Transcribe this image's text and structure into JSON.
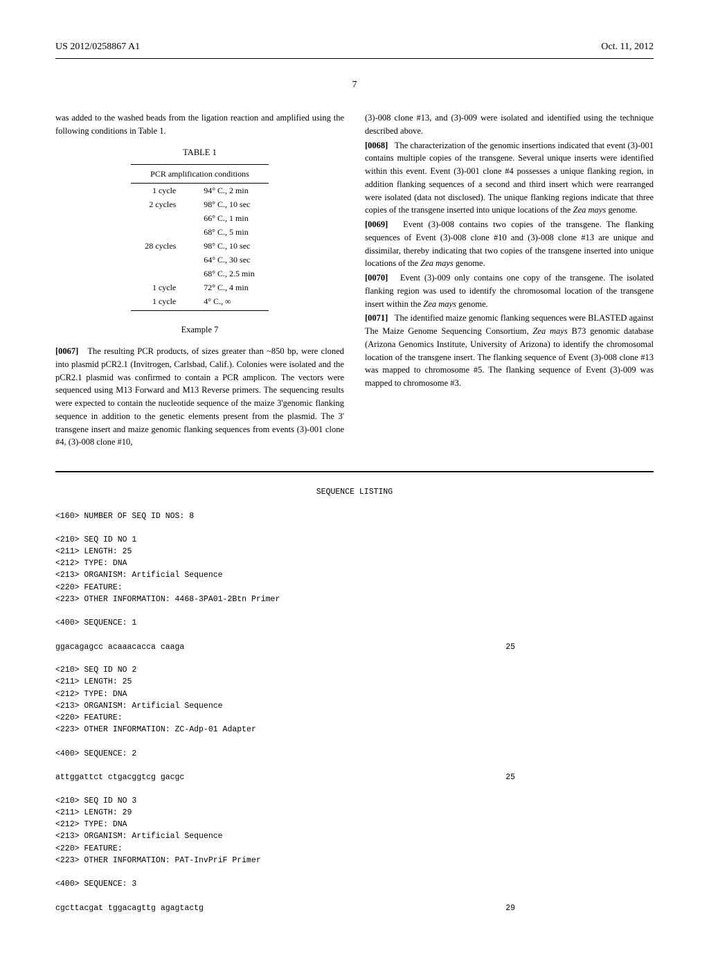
{
  "header": {
    "left": "US 2012/0258867 A1",
    "right": "Oct. 11, 2012"
  },
  "page_number": "7",
  "left_column": {
    "intro_text": "was added to the washed beads from the ligation reaction and amplified using the following conditions in Table 1.",
    "table": {
      "caption": "TABLE 1",
      "subtitle": "PCR amplification conditions",
      "rows": [
        {
          "cycles": "1 cycle",
          "cond": "94° C., 2 min"
        },
        {
          "cycles": "2 cycles",
          "cond": "98° C., 10 sec"
        },
        {
          "cycles": "",
          "cond": "66° C., 1 min"
        },
        {
          "cycles": "",
          "cond": "68° C., 5 min"
        },
        {
          "cycles": "28 cycles",
          "cond": "98° C., 10 sec"
        },
        {
          "cycles": "",
          "cond": "64° C., 30 sec"
        },
        {
          "cycles": "",
          "cond": "68° C., 2.5 min"
        },
        {
          "cycles": "1 cycle",
          "cond": "72° C., 4 min"
        },
        {
          "cycles": "1 cycle",
          "cond": "4° C., ∞"
        }
      ]
    },
    "example_heading": "Example 7",
    "para_0067_num": "[0067]",
    "para_0067": "The resulting PCR products, of sizes greater than ~850 bp, were cloned into plasmid pCR2.1 (Invitrogen, Carlsbad, Calif.). Colonies were isolated and the pCR2.1 plasmid was confirmed to contain a PCR amplicon. The vectors were sequenced using M13 Forward and M13 Reverse primers. The sequencing results were expected to contain the nucleotide sequence of the maize 3'genomic flanking sequence in addition to the genetic elements present from the plasmid. The 3' transgene insert and maize genomic flanking sequences from events (3)-001 clone #4, (3)-008 clone #10,"
  },
  "right_column": {
    "cont_text": "(3)-008 clone #13, and (3)-009 were isolated and identified using the technique described above.",
    "para_0068_num": "[0068]",
    "para_0068_a": "The characterization of the genomic insertions indicated that event (3)-001 contains multiple copies of the transgene. Several unique inserts were identified within this event. Event (3)-001 clone #4 possesses a unique flanking region, in addition flanking sequences of a second and third insert which were rearranged were isolated (data not disclosed). The unique flanking regions indicate that three copies of the transgene inserted into unique locations of the ",
    "para_0068_b": "Zea mays",
    "para_0068_c": " genome.",
    "para_0069_num": "[0069]",
    "para_0069_a": "Event (3)-008 contains two copies of the transgene. The flanking sequences of Event (3)-008 clone #10 and (3)-008 clone #13 are unique and dissimilar, thereby indicating that two copies of the transgene inserted into unique locations of the ",
    "para_0069_b": "Zea mays",
    "para_0069_c": " genome.",
    "para_0070_num": "[0070]",
    "para_0070_a": "Event (3)-009 only contains one copy of the transgene. The isolated flanking region was used to identify the chromosomal location of the transgene insert within the ",
    "para_0070_b": "Zea mays",
    "para_0070_c": " genome.",
    "para_0071_num": "[0071]",
    "para_0071_a": "The identified maize genomic flanking sequences were BLASTED against The Maize Genome Sequencing Consortium, ",
    "para_0071_b": "Zea mays",
    "para_0071_c": " B73 genomic database (Arizona Genomics Institute, University of Arizona) to identify the chromosomal location of the transgene insert. The flanking sequence of Event (3)-008 clone #13 was mapped to chromosome #5. The flanking sequence of Event (3)-009 was mapped to chromosome #3."
  },
  "sequence_listing": {
    "title": "SEQUENCE LISTING",
    "num_seqs": "<160> NUMBER OF SEQ ID NOS: 8",
    "seqs": [
      {
        "lines": [
          "<210> SEQ ID NO 1",
          "<211> LENGTH: 25",
          "<212> TYPE: DNA",
          "<213> ORGANISM: Artificial Sequence",
          "<220> FEATURE:",
          "<223> OTHER INFORMATION: 4468-3PA01-2Btn Primer"
        ],
        "seq_label": "<400> SEQUENCE: 1",
        "seq_text": "ggacagagcc acaaacacca caaga",
        "seq_num": "25"
      },
      {
        "lines": [
          "<210> SEQ ID NO 2",
          "<211> LENGTH: 25",
          "<212> TYPE: DNA",
          "<213> ORGANISM: Artificial Sequence",
          "<220> FEATURE:",
          "<223> OTHER INFORMATION: ZC-Adp-01 Adapter"
        ],
        "seq_label": "<400> SEQUENCE: 2",
        "seq_text": "attggattct ctgacggtcg gacgc",
        "seq_num": "25"
      },
      {
        "lines": [
          "<210> SEQ ID NO 3",
          "<211> LENGTH: 29",
          "<212> TYPE: DNA",
          "<213> ORGANISM: Artificial Sequence",
          "<220> FEATURE:",
          "<223> OTHER INFORMATION: PAT-InvPriF Primer"
        ],
        "seq_label": "<400> SEQUENCE: 3",
        "seq_text": "cgcttacgat tggacagttg agagtactg",
        "seq_num": "29"
      }
    ]
  }
}
